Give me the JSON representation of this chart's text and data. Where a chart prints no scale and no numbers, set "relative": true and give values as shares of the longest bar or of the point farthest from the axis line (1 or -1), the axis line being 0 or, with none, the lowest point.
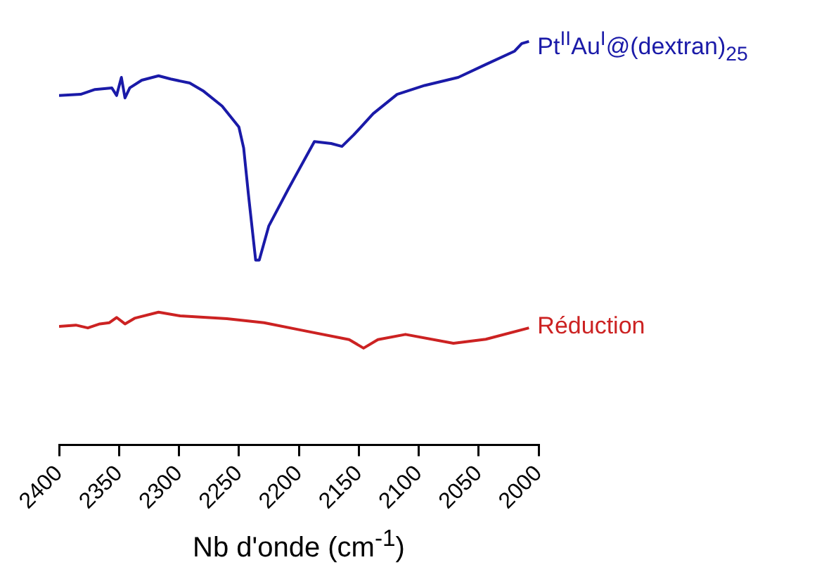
{
  "chart_data": {
    "type": "line",
    "relative": true,
    "xlabel": "Nb d'onde (cm$^{-1}$)",
    "xlim": [
      2400,
      2000
    ],
    "xticks": [
      2400,
      2350,
      2300,
      2250,
      2200,
      2150,
      2100,
      2050,
      2000
    ],
    "grid": false,
    "legend": false,
    "marker": "none",
    "line_style": "solid",
    "series": [
      {
        "name": "Pt$^{II}$Au$^{I}$@(dextran)$_{25}$",
        "color": "#1a1aa8",
        "x": [
          2400,
          2382,
          2370,
          2356,
          2352,
          2348,
          2345,
          2341,
          2331,
          2317,
          2307,
          2291,
          2280,
          2264,
          2250,
          2246,
          2242,
          2236,
          2233,
          2225,
          2209,
          2187,
          2173,
          2164,
          2154,
          2138,
          2118,
          2095,
          2067,
          2044,
          2020,
          2014,
          2008
        ],
        "values": [
          0.866,
          0.869,
          0.881,
          0.885,
          0.866,
          0.911,
          0.86,
          0.885,
          0.904,
          0.915,
          0.907,
          0.897,
          0.878,
          0.84,
          0.788,
          0.736,
          0.62,
          0.458,
          0.458,
          0.543,
          0.633,
          0.752,
          0.747,
          0.74,
          0.769,
          0.821,
          0.869,
          0.891,
          0.911,
          0.943,
          0.976,
          0.995,
          1
        ]
      },
      {
        "name": "Réduction",
        "color": "#cc2222",
        "x": [
          2400,
          2386,
          2376,
          2366,
          2358,
          2352,
          2345,
          2337,
          2317,
          2299,
          2260,
          2229,
          2197,
          2158,
          2146,
          2134,
          2111,
          2071,
          2044,
          2008
        ],
        "values": [
          0.294,
          0.297,
          0.29,
          0.3,
          0.303,
          0.316,
          0.3,
          0.314,
          0.329,
          0.32,
          0.313,
          0.303,
          0.284,
          0.261,
          0.24,
          0.261,
          0.274,
          0.252,
          0.262,
          0.29
        ]
      }
    ]
  }
}
